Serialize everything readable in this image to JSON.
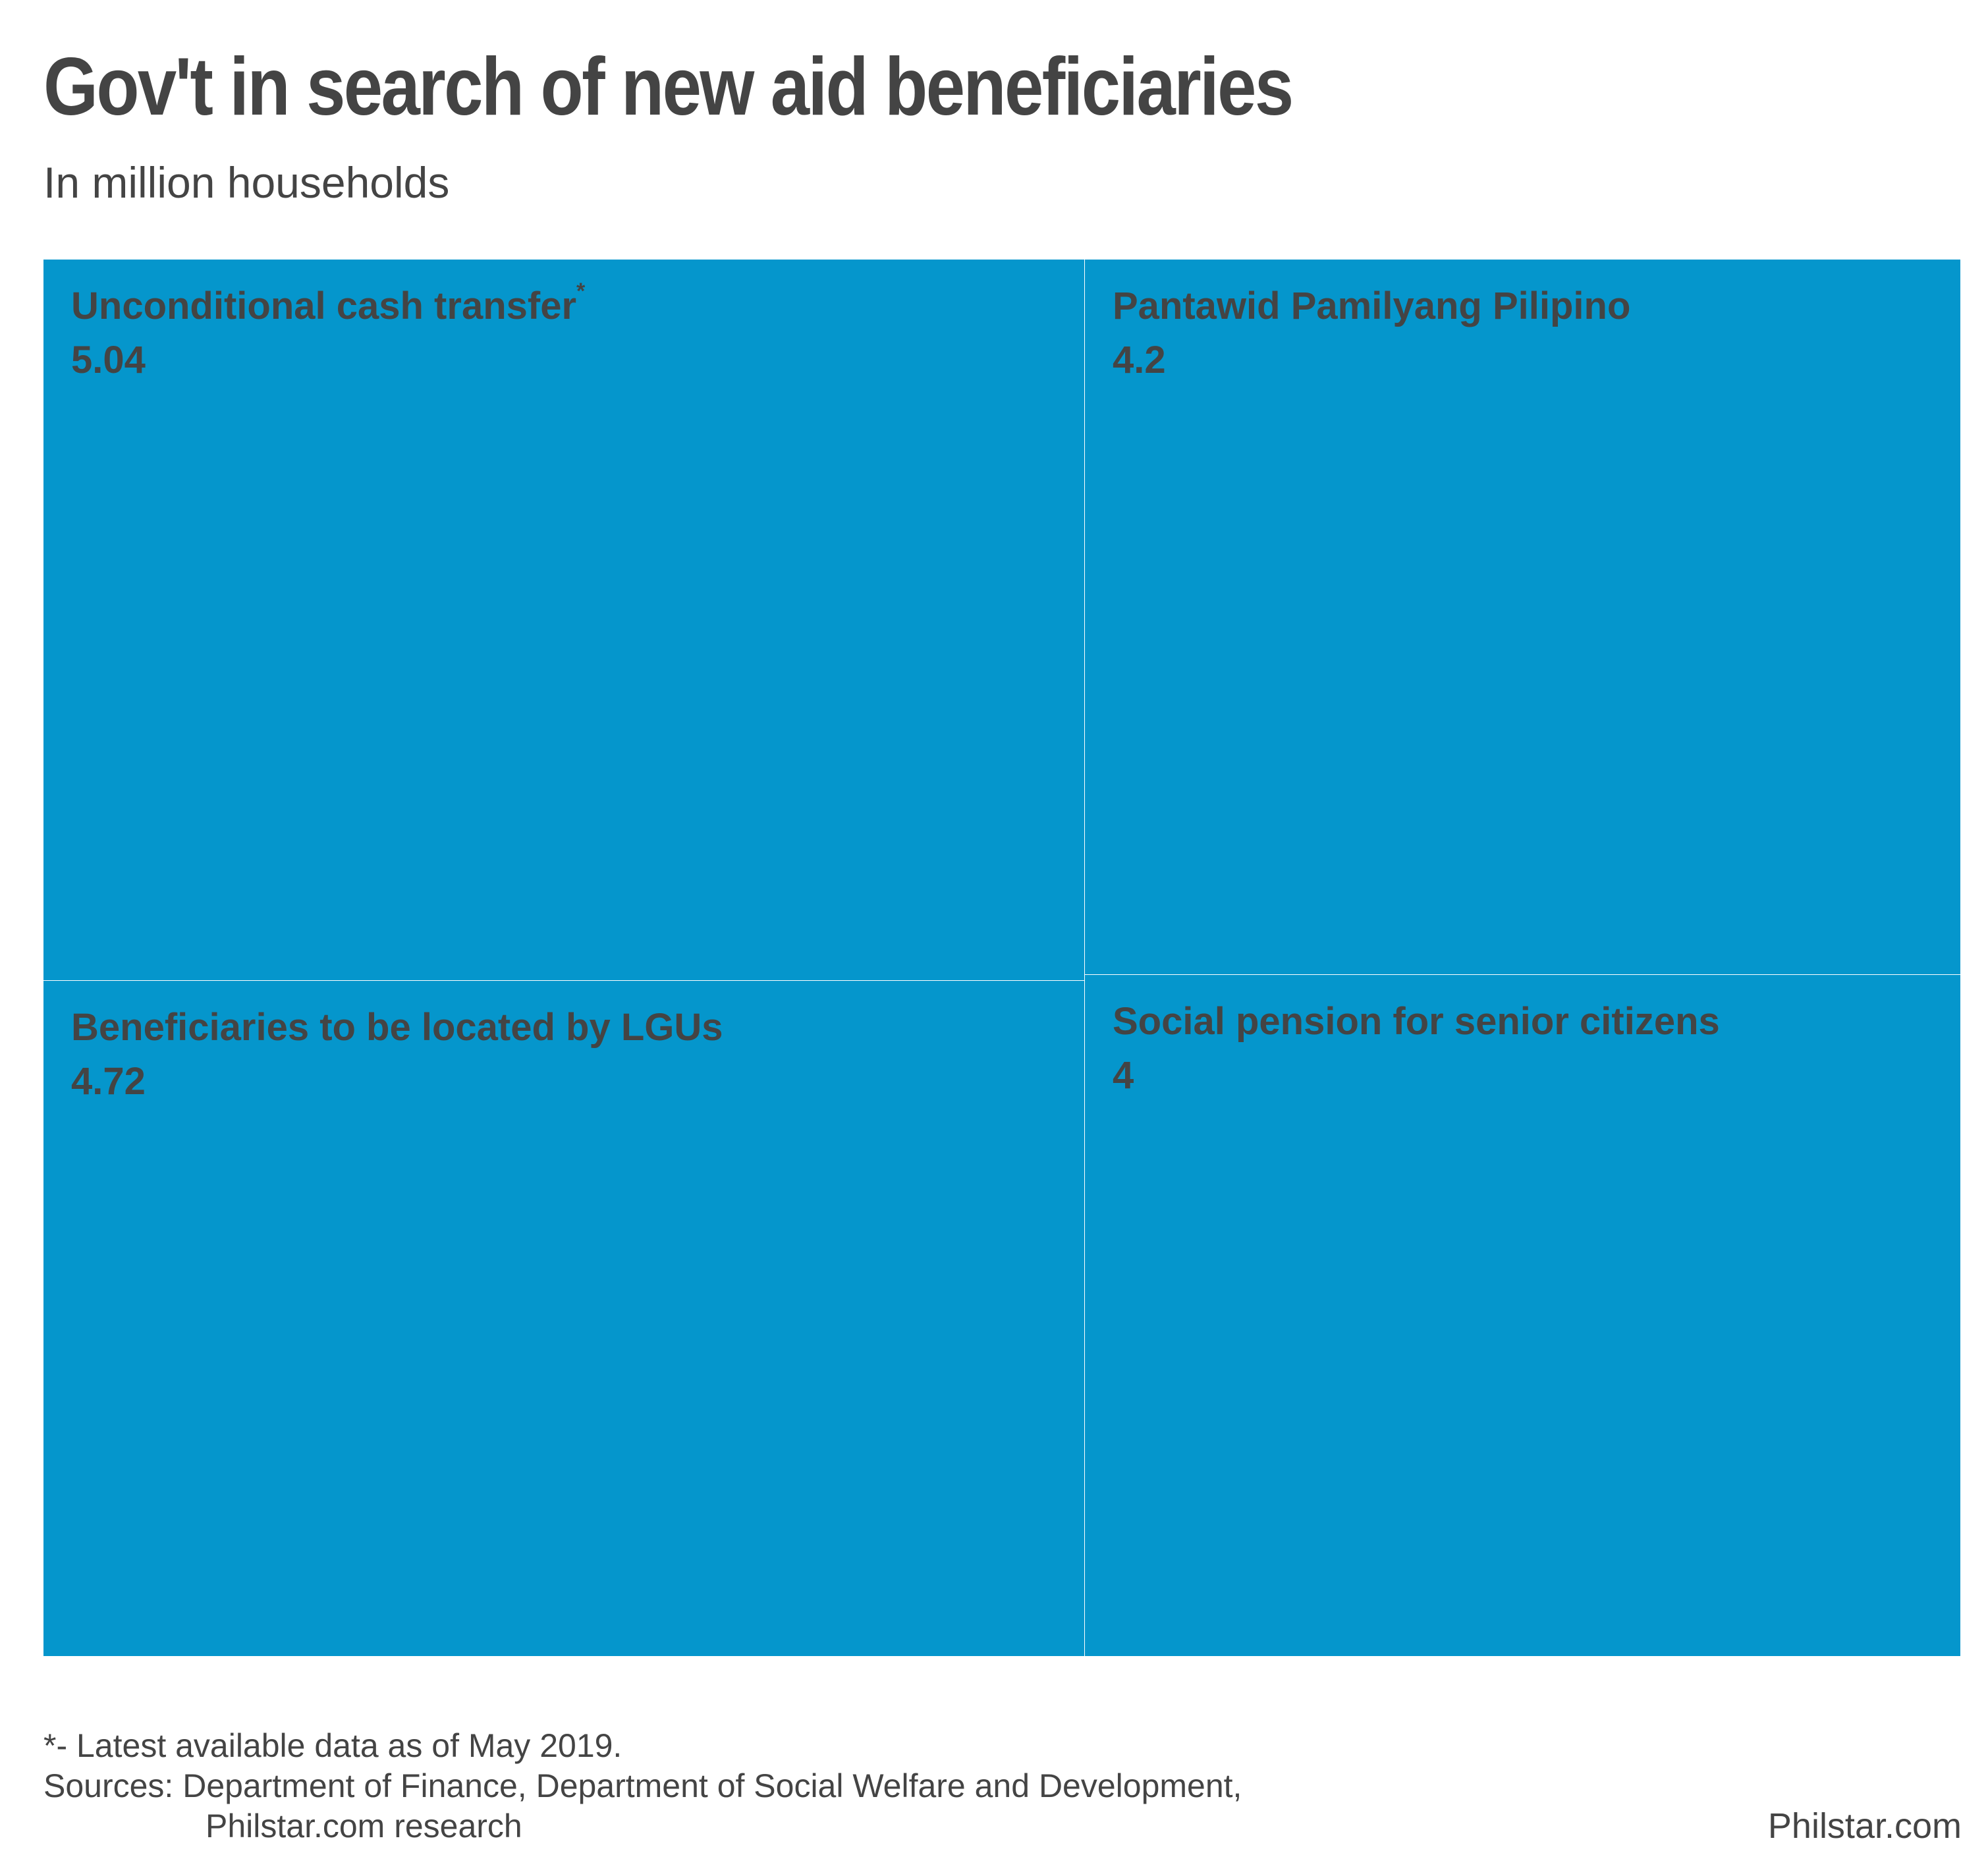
{
  "title": "Gov't in search of new aid beneficiaries",
  "subtitle": "In million households",
  "colors": {
    "tile": "#0596cc",
    "divider": "#ffffff",
    "text": "#444444"
  },
  "chart_data": {
    "type": "treemap",
    "title": "Gov't in search of new aid beneficiaries",
    "subtitle": "In million households",
    "unit": "million households",
    "items": [
      {
        "label": "Unconditional cash transfer",
        "marker": "*",
        "value": 5.04,
        "value_text": "5.04"
      },
      {
        "label": "Beneficiaries to be located by LGUs",
        "marker": "",
        "value": 4.72,
        "value_text": "4.72"
      },
      {
        "label": "Pantawid Pamilyang Pilipino",
        "marker": "",
        "value": 4.2,
        "value_text": "4.2"
      },
      {
        "label": "Social pension for senior citizens",
        "marker": "",
        "value": 4,
        "value_text": "4"
      }
    ]
  },
  "footnote": {
    "note": "*- Latest available data as of May 2019.",
    "sources_line1": "Sources: Department of Finance, Department of Social Welfare and Development,",
    "sources_line2": "Philstar.com research"
  },
  "brand": "Philstar.com"
}
